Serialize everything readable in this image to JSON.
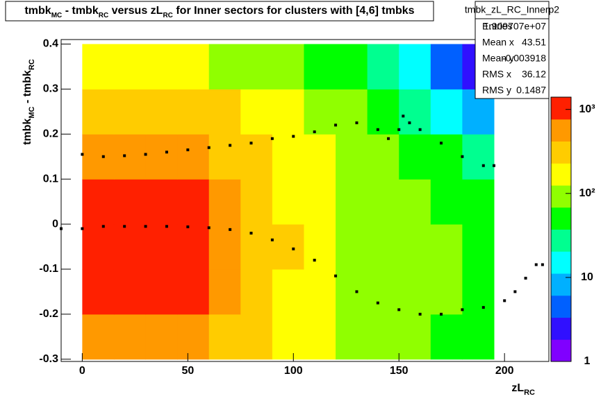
{
  "chart_data": {
    "type": "heatmap",
    "title_parts": [
      {
        "text": "tmbk"
      },
      {
        "text": "MC",
        "sub": true
      },
      {
        "text": " - tmbk"
      },
      {
        "text": "RC",
        "sub": true
      },
      {
        "text": " versus zL"
      },
      {
        "text": "RC",
        "sub": true
      },
      {
        "text": " for Inner sectors for clusters with [4,6] tmbks"
      }
    ],
    "ylabel_parts": [
      {
        "text": "tmbk"
      },
      {
        "text": "MC",
        "sub": true
      },
      {
        "text": " - tmbk"
      },
      {
        "text": "RC",
        "sub": true
      }
    ],
    "xlabel_parts": [
      {
        "text": "zL"
      },
      {
        "text": "RC",
        "sub": true
      }
    ],
    "xlim": [
      -10,
      221
    ],
    "ylim": [
      -0.305,
      0.41
    ],
    "xticks": [
      0,
      50,
      100,
      150,
      200
    ],
    "yticks": [
      -0.3,
      -0.2,
      -0.1,
      0,
      0.1,
      0.2,
      0.3,
      0.4
    ],
    "zlim": [
      1,
      1400
    ],
    "zlog": true,
    "zticks": [
      1,
      10,
      {
        "value": 100,
        "label": "10²"
      },
      {
        "value": 1000,
        "label": "10³"
      }
    ],
    "palette": [
      "#8000ff",
      "#3010ff",
      "#0060ff",
      "#00b0ff",
      "#00ffff",
      "#00ff90",
      "#00ff00",
      "#90ff00",
      "#ffff00",
      "#ffcc00",
      "#ff9900",
      "#ff2000"
    ],
    "x_bins": [
      0,
      15,
      30,
      45,
      60,
      75,
      90,
      105,
      120,
      135,
      150,
      165,
      180,
      195
    ],
    "y_bins": [
      -0.3,
      -0.2,
      -0.1,
      0,
      0.1,
      0.2,
      0.3,
      0.4
    ],
    "z": [
      [
        700,
        700,
        650,
        500,
        350,
        260,
        200,
        150,
        110,
        90,
        75,
        65,
        50
      ],
      [
        1200,
        1200,
        1100,
        800,
        450,
        300,
        220,
        160,
        120,
        95,
        80,
        70,
        55
      ],
      [
        1300,
        1300,
        1200,
        850,
        500,
        320,
        230,
        170,
        120,
        95,
        80,
        70,
        55
      ],
      [
        1200,
        1200,
        1100,
        800,
        450,
        300,
        220,
        160,
        115,
        90,
        75,
        60,
        45
      ],
      [
        700,
        700,
        650,
        520,
        380,
        270,
        200,
        150,
        105,
        80,
        60,
        40,
        25
      ],
      [
        350,
        350,
        320,
        280,
        230,
        180,
        140,
        105,
        75,
        55,
        35,
        18,
        8
      ],
      [
        150,
        150,
        140,
        130,
        110,
        95,
        80,
        60,
        40,
        22,
        12,
        5,
        2
      ]
    ],
    "series": [
      {
        "color": "#000000",
        "x": [
          0,
          10,
          20,
          30,
          40,
          50,
          60,
          70,
          80,
          90,
          100,
          110,
          120,
          130,
          140,
          145,
          150,
          152,
          155,
          160,
          170,
          180,
          190,
          195
        ],
        "values": [
          0.155,
          0.15,
          0.152,
          0.155,
          0.16,
          0.165,
          0.17,
          0.175,
          0.18,
          0.19,
          0.195,
          0.205,
          0.22,
          0.225,
          0.21,
          0.19,
          0.21,
          0.24,
          0.225,
          0.21,
          0.18,
          0.15,
          0.13,
          0.13
        ]
      },
      {
        "color": "#000000",
        "x": [
          -10,
          0,
          10,
          20,
          30,
          40,
          50,
          60,
          70,
          80,
          90,
          100,
          110,
          120,
          130,
          140,
          150,
          160,
          170,
          180,
          190,
          200,
          205,
          210,
          215,
          218
        ],
        "values": [
          -0.01,
          -0.01,
          -0.005,
          -0.005,
          -0.005,
          -0.005,
          -0.006,
          -0.008,
          -0.012,
          -0.02,
          -0.035,
          -0.055,
          -0.08,
          -0.115,
          -0.15,
          -0.175,
          -0.19,
          -0.2,
          -0.2,
          -0.19,
          -0.185,
          -0.17,
          -0.15,
          -0.12,
          -0.09,
          -0.09
        ]
      }
    ],
    "stats_title": "tmbk_zL_RC_Innerp2",
    "stats": [
      {
        "name": "Entries",
        "value": 19097070,
        "label": "1.909707e+07"
      },
      {
        "name": "Mean x",
        "value": 43.51
      },
      {
        "name": "Mean y",
        "value": -0.003918
      },
      {
        "name": "RMS x",
        "value": 36.12
      },
      {
        "name": "RMS y",
        "value": 0.1487
      }
    ]
  }
}
